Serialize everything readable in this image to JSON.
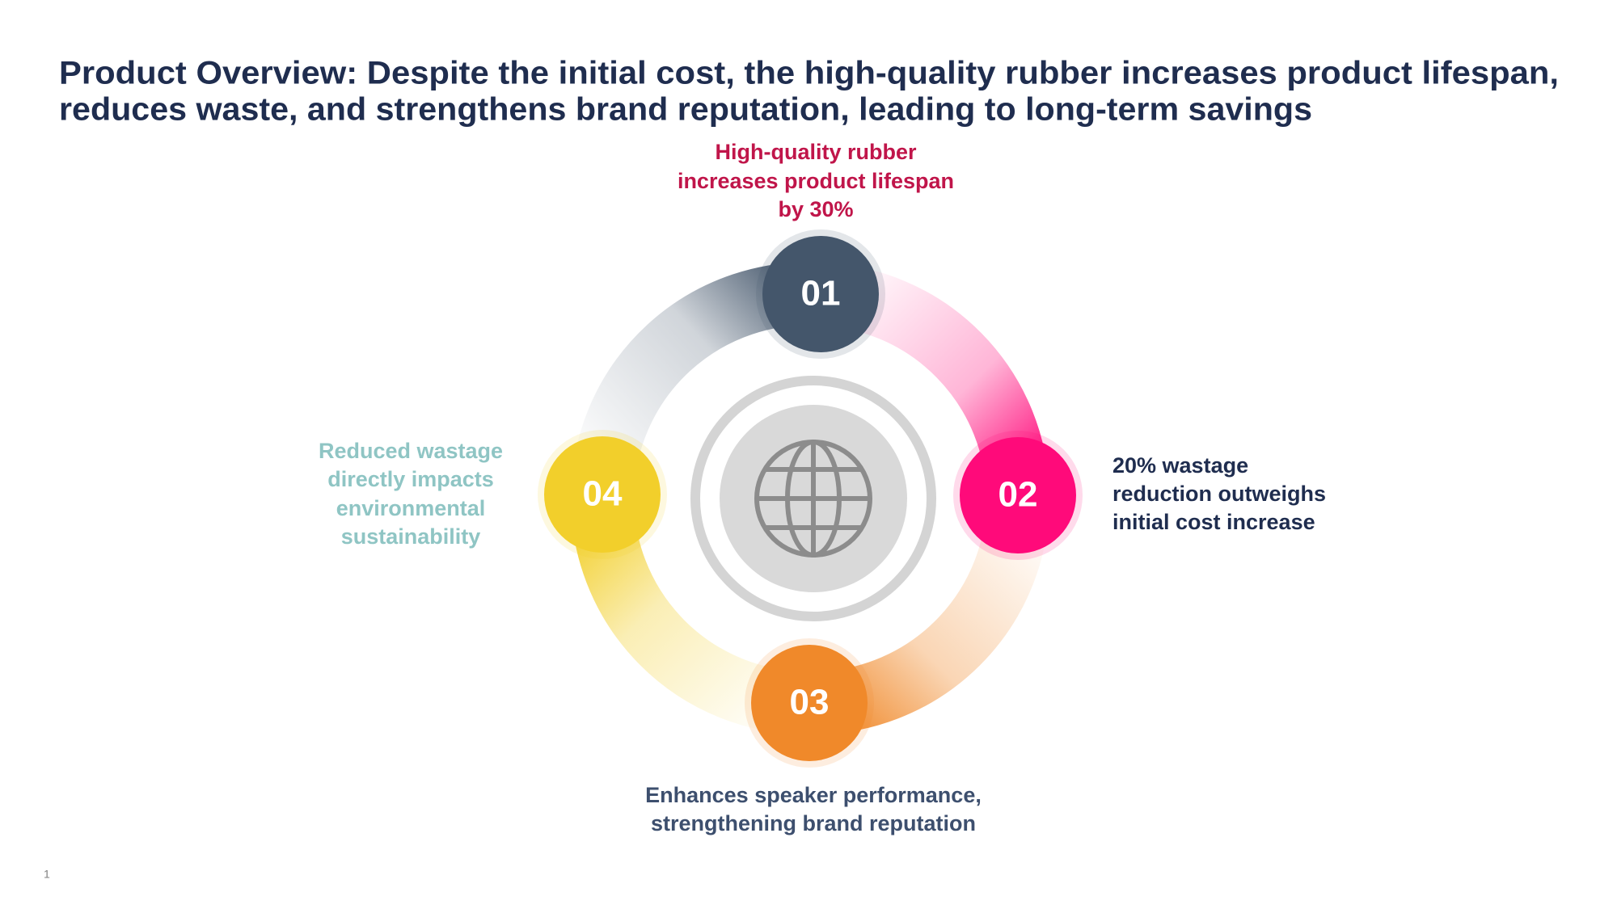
{
  "title": {
    "lines": [
      "Product Overview: Despite the initial cost, the high-quality rubber increases product lifespan,",
      "reduces waste, and strengthens brand reputation, leading to long-term savings"
    ]
  },
  "nodes": [
    {
      "number": "01",
      "lines": [
        "High-quality rubber",
        "increases product lifespan",
        "by 30%"
      ]
    },
    {
      "number": "02",
      "lines": [
        "20% wastage",
        "reduction outweighs",
        "initial cost increase"
      ]
    },
    {
      "number": "03",
      "lines": [
        "Enhances speaker performance,",
        "strengthening brand reputation"
      ]
    },
    {
      "number": "04",
      "lines": [
        "Reduced wastage",
        "directly impacts",
        "environmental",
        "sustainability"
      ]
    }
  ],
  "page_number": "1"
}
